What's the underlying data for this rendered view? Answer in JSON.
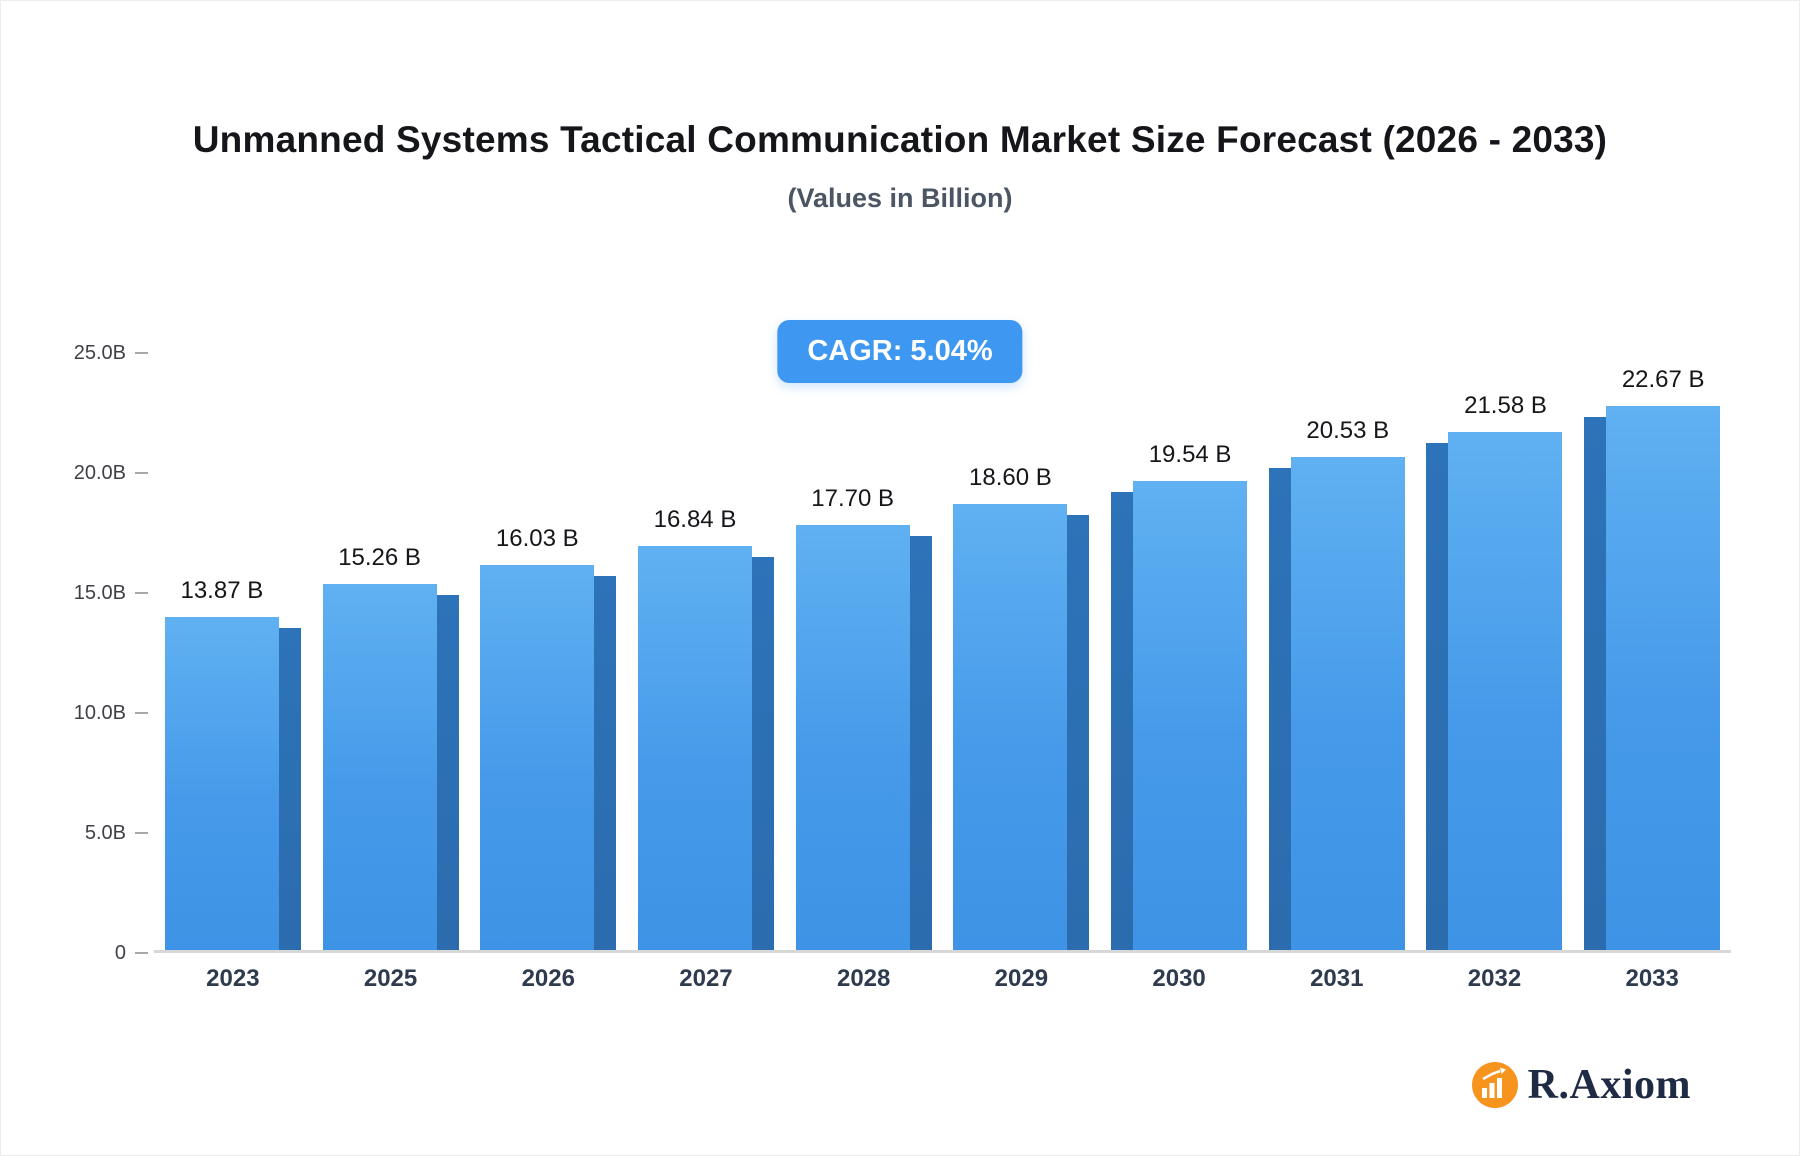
{
  "chart_data": {
    "type": "bar",
    "title": "Unmanned Systems Tactical Communication Market Size Forecast (2026 - 2033)",
    "subtitle": "(Values in Billion)",
    "cagr_label": "CAGR: 5.04%",
    "categories": [
      "2023",
      "2025",
      "2026",
      "2027",
      "2028",
      "2029",
      "2030",
      "2031",
      "2032",
      "2033"
    ],
    "values": [
      13.87,
      15.26,
      16.03,
      16.84,
      17.7,
      18.6,
      19.54,
      20.53,
      21.58,
      22.67
    ],
    "value_labels": [
      "13.87 B",
      "15.26 B",
      "16.03 B",
      "16.84 B",
      "17.70 B",
      "18.60 B",
      "19.54 B",
      "20.53 B",
      "21.58 B",
      "22.67 B"
    ],
    "ylim": [
      0,
      25
    ],
    "ytick_values": [
      0,
      5,
      10,
      15,
      20,
      25
    ],
    "ytick_labels": [
      "0",
      "5.0B",
      "10.0B",
      "15.0B",
      "20.0B",
      "25.0B"
    ],
    "xlabel": "",
    "ylabel": "",
    "grid": "off",
    "legend": "none",
    "bar_color_top": "#60B1F2",
    "bar_color_bottom": "#3E93E6",
    "bar_side_color": "#2D73B9",
    "badge_color": "#3E97F0"
  },
  "branding": {
    "logo_text": "R.Axiom",
    "logo_icon": "bar-chart-icon",
    "logo_icon_color": "#F6941D",
    "logo_text_color": "#1F2A44"
  }
}
